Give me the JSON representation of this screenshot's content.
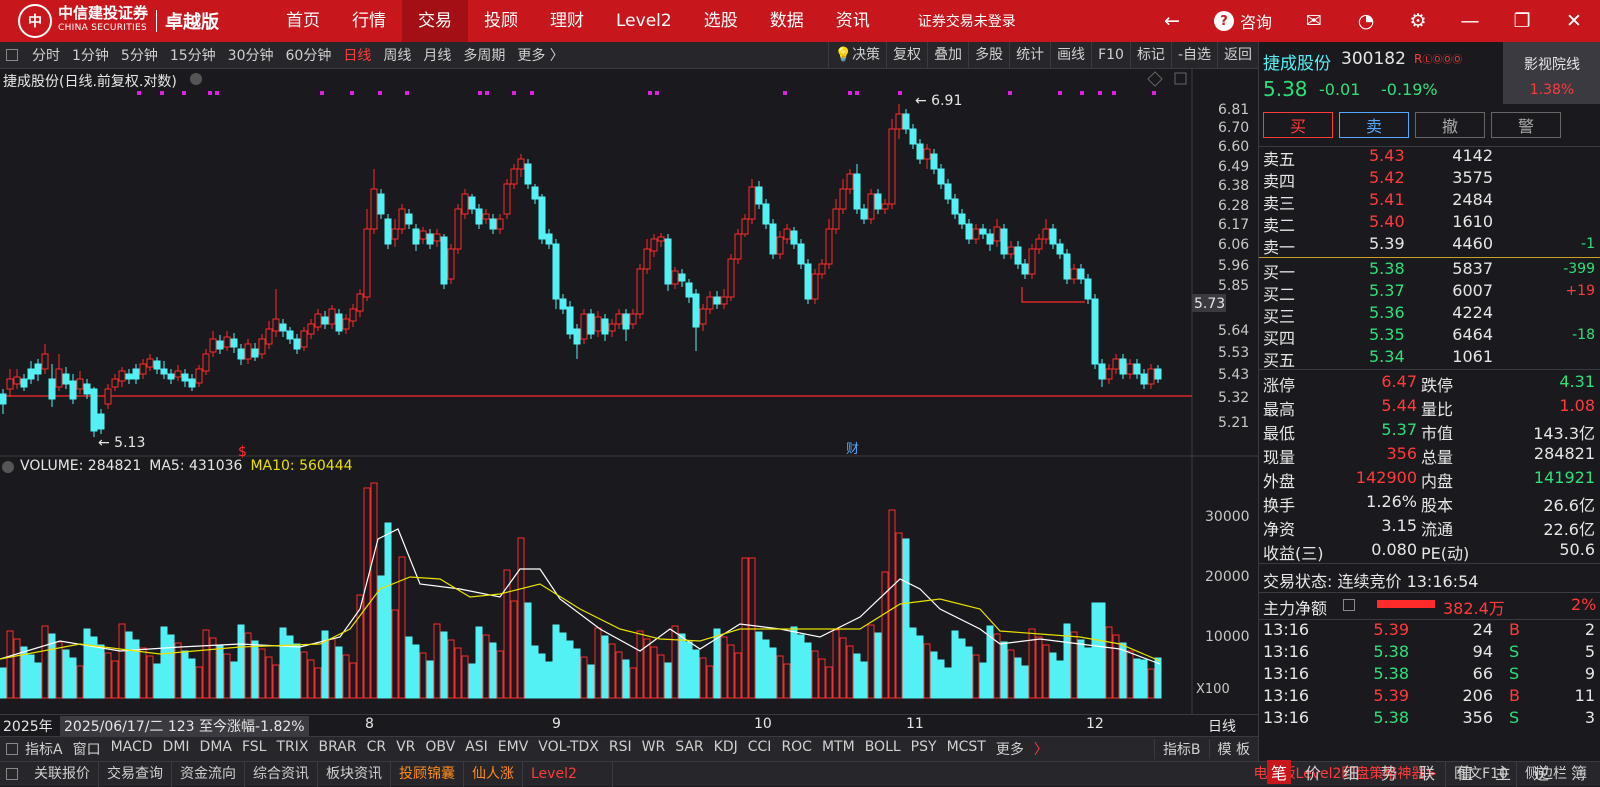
{
  "topbar": {
    "brand_cn": "中信建投证券",
    "brand_en": "CHINA SECURITIES",
    "edition": "卓越版",
    "nav": [
      "首页",
      "行情",
      "交易",
      "投顾",
      "理财",
      "Level2",
      "选股",
      "数据",
      "资讯"
    ],
    "active_nav": 2,
    "login_status": "证券交易未登录",
    "consult": "咨询"
  },
  "periodbar": {
    "periods": [
      "分时",
      "1分钟",
      "5分钟",
      "15分钟",
      "30分钟",
      "60分钟",
      "日线",
      "周线",
      "月线",
      "多周期",
      "更多 〉"
    ],
    "active_period": 6,
    "tools": [
      "决策",
      "复权",
      "叠加",
      "多股",
      "统计",
      "画线",
      "F10",
      "标记",
      "-自选",
      "返回"
    ]
  },
  "chart": {
    "title": "捷成股份(日线.前复权.对数)",
    "price_ticks": [
      "6.81",
      "6.70",
      "6.60",
      "6.49",
      "6.38",
      "6.28",
      "6.17",
      "6.06",
      "5.96",
      "5.85",
      "5.64",
      "5.53",
      "5.43",
      "5.32",
      "5.21"
    ],
    "current_price_tag": "5.73",
    "high_label": "6.91",
    "low_label": "5.13",
    "event_s": "$",
    "event_cai": "财",
    "volume_label": "VOLUME: 284821",
    "ma5_label": "MA5: 431036",
    "ma10_label": "MA10: 560444",
    "volume_ticks": [
      "30000",
      "20000",
      "10000"
    ],
    "volume_unit": "X100"
  },
  "dateaxis": {
    "year": "2025年",
    "cursor_info": "2025/06/17/二 123 至今涨幅-1.82%",
    "months": [
      "8",
      "9",
      "10",
      "11",
      "12"
    ],
    "period_tag": "日线"
  },
  "indicators": {
    "items": [
      "指标A",
      "窗口",
      "MACD",
      "DMI",
      "DMA",
      "FSL",
      "TRIX",
      "BRAR",
      "CR",
      "VR",
      "OBV",
      "ASI",
      "EMV",
      "VOL-TDX",
      "RSI",
      "WR",
      "SAR",
      "KDJ",
      "CCI",
      "ROC",
      "MTM",
      "BOLL",
      "PSY",
      "MCST",
      "更多"
    ],
    "right": [
      "指标B",
      "模 板"
    ]
  },
  "bottombar": {
    "tabs": [
      "关联报价",
      "交易查询",
      "资金流向",
      "综合资讯",
      "板块资讯",
      "投顾锦囊",
      "仙人涨",
      "Level2"
    ],
    "promo": "电脑版Level2盯盘策略神器>",
    "f10": "图文F10",
    "sidebar": "侧边栏"
  },
  "quote": {
    "name": "捷成股份",
    "code": "300182",
    "tag": "R",
    "price": "5.38",
    "change": "-0.01",
    "change_pct": "-0.19%",
    "sector": "影视院线",
    "sector_pct": "1.38%",
    "trade_buttons": [
      "买",
      "卖",
      "撤",
      "警"
    ],
    "asks": [
      {
        "label": "卖五",
        "price": "5.43",
        "vol": "4142",
        "chg": ""
      },
      {
        "label": "卖四",
        "price": "5.42",
        "vol": "3575",
        "chg": ""
      },
      {
        "label": "卖三",
        "price": "5.41",
        "vol": "2484",
        "chg": ""
      },
      {
        "label": "卖二",
        "price": "5.40",
        "vol": "1610",
        "chg": ""
      },
      {
        "label": "卖一",
        "price": "5.39",
        "vol": "4460",
        "chg": "-1"
      }
    ],
    "bids": [
      {
        "label": "买一",
        "price": "5.38",
        "vol": "5837",
        "chg": "-399"
      },
      {
        "label": "买二",
        "price": "5.37",
        "vol": "6007",
        "chg": "+19"
      },
      {
        "label": "买三",
        "price": "5.36",
        "vol": "4224",
        "chg": ""
      },
      {
        "label": "买四",
        "price": "5.35",
        "vol": "6464",
        "chg": "-18"
      },
      {
        "label": "买五",
        "price": "5.34",
        "vol": "1061",
        "chg": ""
      }
    ],
    "stats": [
      [
        "涨停",
        "6.47",
        "跌停",
        "4.31"
      ],
      [
        "最高",
        "5.44",
        "量比",
        "1.08"
      ],
      [
        "最低",
        "5.37",
        "市值",
        "143.3亿"
      ],
      [
        "现量",
        "356",
        "总量",
        "284821"
      ],
      [
        "外盘",
        "142900",
        "内盘",
        "141921"
      ],
      [
        "换手",
        "1.26%",
        "股本",
        "26.6亿"
      ],
      [
        "净资",
        "3.15",
        "流通",
        "22.6亿"
      ],
      [
        "收益(三)",
        "0.080",
        "PE(动)",
        "50.6"
      ]
    ],
    "status": "交易状态: 连续竞价 13:16:54",
    "fund_label": "主力净额",
    "fund_value": "382.4万",
    "fund_pct": "2%",
    "ticks": [
      [
        "13:16",
        "5.39",
        "24",
        "B",
        "2"
      ],
      [
        "13:16",
        "5.38",
        "94",
        "S",
        "5"
      ],
      [
        "13:16",
        "5.38",
        "66",
        "S",
        "9"
      ],
      [
        "13:16",
        "5.39",
        "206",
        "B",
        "11"
      ],
      [
        "13:16",
        "5.38",
        "356",
        "S",
        "3"
      ]
    ],
    "bottom_tabs": [
      "笔",
      "价",
      "细",
      "势",
      "联",
      "值",
      "主",
      "逆",
      "簿"
    ]
  }
}
